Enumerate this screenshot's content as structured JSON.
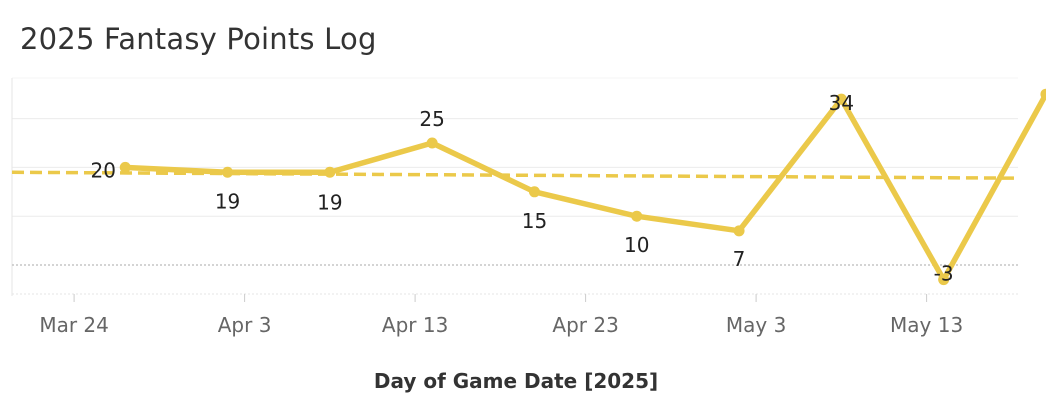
{
  "chart_data": {
    "type": "line",
    "title": "2025 Fantasy Points Log",
    "xlabel": "Day of Game Date [2025]",
    "ylabel": "",
    "x_ticks": [
      "Mar 24",
      "Apr 3",
      "Apr 13",
      "Apr 23",
      "May 3",
      "May 13"
    ],
    "series": [
      {
        "x": [
          "2025-03-27",
          "2025-04-02",
          "2025-04-08",
          "2025-04-14",
          "2025-04-20",
          "2025-04-26",
          "2025-05-02",
          "2025-05-08",
          "2025-05-14",
          "2025-05-20"
        ],
        "values": [
          20,
          19,
          19,
          25,
          15,
          10,
          7,
          34,
          -3,
          35
        ]
      }
    ],
    "trend_line": {
      "start": 19,
      "end": 18,
      "style": "dashed"
    },
    "reference_line": {
      "value": 0,
      "style": "dotted"
    },
    "ylim": [
      -6,
      39
    ],
    "xlim": [
      "2025-03-22",
      "2025-05-23"
    ],
    "grid": true,
    "colors": {
      "line": "#ebc94a",
      "grid": "#ececec",
      "ref": "#bbbbbb"
    }
  }
}
